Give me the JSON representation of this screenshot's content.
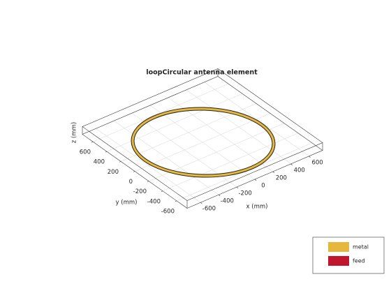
{
  "chart_data": {
    "type": "antenna3d",
    "title": "loopCircular antenna element",
    "xlabel": "x (mm)",
    "ylabel": "y (mm)",
    "zlabel": "z (mm)",
    "xlim": [
      -750,
      750
    ],
    "ylim": [
      -750,
      750
    ],
    "xticks": [
      -600,
      -400,
      -200,
      0,
      200,
      400,
      600
    ],
    "yticks": [
      -600,
      -400,
      -200,
      0,
      200,
      400,
      600
    ],
    "grid": true,
    "legend": {
      "position": "bottom-right",
      "entries": [
        {
          "name": "metal",
          "color": "#e5b73b"
        },
        {
          "name": "feed",
          "color": "#c0172e"
        }
      ]
    }
  }
}
